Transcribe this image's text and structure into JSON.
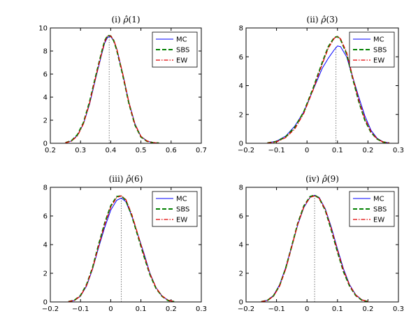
{
  "figure": {
    "legend_placement": "top-right",
    "grid": false
  },
  "series_styles": [
    {
      "name": "MC",
      "color": "#0000ff",
      "dash": "",
      "width": 1
    },
    {
      "name": "SBS",
      "color": "#008000",
      "dash": "6 3",
      "width": 2
    },
    {
      "name": "EW",
      "color": "#e00000",
      "dash": "6 2 1.5 2",
      "width": 1.3
    }
  ],
  "chart_data": [
    {
      "type": "line",
      "title_prefix": "(i) ",
      "title_symbol": "ρ̂",
      "title_suffix": "(1)",
      "xlim": [
        0.2,
        0.7
      ],
      "ylim": [
        0,
        10
      ],
      "xticks": [
        "0.2",
        "0.3",
        "0.4",
        "0.5",
        "0.6",
        "0.7"
      ],
      "yticks": [
        "0",
        "2",
        "4",
        "6",
        "8",
        "10"
      ],
      "vline_x": 0.395,
      "series": [
        {
          "name": "MC",
          "x": [
            0.25,
            0.27,
            0.29,
            0.31,
            0.33,
            0.35,
            0.37,
            0.38,
            0.39,
            0.4,
            0.41,
            0.42,
            0.44,
            0.46,
            0.48,
            0.5,
            0.52,
            0.54,
            0.56
          ],
          "y": [
            0.05,
            0.2,
            0.7,
            1.7,
            3.4,
            5.6,
            7.7,
            8.7,
            9.2,
            9.25,
            8.9,
            8.2,
            6.0,
            3.6,
            1.7,
            0.6,
            0.2,
            0.05,
            0.02
          ]
        },
        {
          "name": "SBS",
          "x": [
            0.25,
            0.27,
            0.29,
            0.31,
            0.33,
            0.35,
            0.37,
            0.38,
            0.39,
            0.4,
            0.41,
            0.42,
            0.44,
            0.46,
            0.48,
            0.5,
            0.52,
            0.54,
            0.56
          ],
          "y": [
            0.05,
            0.22,
            0.75,
            1.8,
            3.6,
            5.8,
            7.9,
            8.9,
            9.35,
            9.3,
            8.9,
            8.1,
            5.9,
            3.5,
            1.6,
            0.55,
            0.18,
            0.05,
            0.02
          ]
        },
        {
          "name": "EW",
          "x": [
            0.25,
            0.27,
            0.29,
            0.31,
            0.33,
            0.35,
            0.37,
            0.38,
            0.39,
            0.4,
            0.41,
            0.42,
            0.44,
            0.46,
            0.48,
            0.5,
            0.52,
            0.54,
            0.56
          ],
          "y": [
            0.04,
            0.18,
            0.65,
            1.7,
            3.5,
            5.7,
            7.8,
            8.8,
            9.3,
            9.3,
            8.95,
            8.2,
            6.0,
            3.55,
            1.65,
            0.6,
            0.2,
            0.05,
            0.02
          ]
        }
      ]
    },
    {
      "type": "line",
      "title_prefix": "(ii) ",
      "title_symbol": "ρ̂",
      "title_suffix": "(3)",
      "xlim": [
        -0.2,
        0.3
      ],
      "ylim": [
        0,
        8
      ],
      "xticks": [
        "−0.2",
        "−0.1",
        "0",
        "0.1",
        "0.2",
        "0.3"
      ],
      "yticks": [
        "0",
        "2",
        "4",
        "6",
        "8"
      ],
      "vline_x": 0.095,
      "series": [
        {
          "name": "MC",
          "x": [
            -0.13,
            -0.1,
            -0.07,
            -0.04,
            -0.01,
            0.02,
            0.05,
            0.07,
            0.09,
            0.1,
            0.11,
            0.13,
            0.15,
            0.17,
            0.19,
            0.21,
            0.23,
            0.25,
            0.27
          ],
          "y": [
            0.02,
            0.15,
            0.5,
            1.2,
            2.2,
            3.7,
            5.2,
            5.9,
            6.5,
            6.75,
            6.7,
            6.0,
            4.6,
            3.2,
            1.9,
            0.9,
            0.35,
            0.1,
            0.02
          ]
        },
        {
          "name": "SBS",
          "x": [
            -0.13,
            -0.1,
            -0.07,
            -0.04,
            -0.01,
            0.02,
            0.05,
            0.07,
            0.09,
            0.1,
            0.11,
            0.13,
            0.15,
            0.17,
            0.19,
            0.21,
            0.23,
            0.25,
            0.27
          ],
          "y": [
            0.02,
            0.12,
            0.45,
            1.1,
            2.2,
            3.8,
            5.6,
            6.7,
            7.35,
            7.4,
            7.2,
            6.2,
            4.5,
            2.9,
            1.6,
            0.75,
            0.3,
            0.08,
            0.02
          ]
        },
        {
          "name": "EW",
          "x": [
            -0.13,
            -0.1,
            -0.07,
            -0.04,
            -0.01,
            0.02,
            0.05,
            0.07,
            0.09,
            0.1,
            0.11,
            0.13,
            0.15,
            0.17,
            0.19,
            0.21,
            0.23,
            0.25,
            0.27
          ],
          "y": [
            0.01,
            0.1,
            0.4,
            1.0,
            2.1,
            3.7,
            5.5,
            6.6,
            7.3,
            7.4,
            7.25,
            6.3,
            4.6,
            3.0,
            1.7,
            0.8,
            0.3,
            0.08,
            0.02
          ]
        }
      ]
    },
    {
      "type": "line",
      "title_prefix": "(iii) ",
      "title_symbol": "ρ̂",
      "title_suffix": "(6)",
      "xlim": [
        -0.2,
        0.3
      ],
      "ylim": [
        0,
        8
      ],
      "xticks": [
        "−0.2",
        "−0.1",
        "0",
        "0.1",
        "0.2",
        "0.3"
      ],
      "yticks": [
        "0",
        "2",
        "4",
        "6",
        "8"
      ],
      "vline_x": 0.035,
      "series": [
        {
          "name": "MC",
          "x": [
            -0.14,
            -0.12,
            -0.1,
            -0.08,
            -0.06,
            -0.04,
            -0.02,
            0.0,
            0.02,
            0.035,
            0.05,
            0.07,
            0.09,
            0.11,
            0.13,
            0.15,
            0.17,
            0.19,
            0.21
          ],
          "y": [
            0.02,
            0.1,
            0.4,
            1.1,
            2.3,
            3.8,
            5.2,
            6.4,
            7.1,
            7.25,
            7.0,
            6.0,
            4.7,
            3.4,
            2.0,
            1.0,
            0.4,
            0.12,
            0.03
          ]
        },
        {
          "name": "SBS",
          "x": [
            -0.14,
            -0.12,
            -0.1,
            -0.08,
            -0.06,
            -0.04,
            -0.02,
            0.0,
            0.02,
            0.035,
            0.05,
            0.07,
            0.09,
            0.11,
            0.13,
            0.15,
            0.17,
            0.19,
            0.21
          ],
          "y": [
            0.02,
            0.12,
            0.45,
            1.2,
            2.4,
            4.0,
            5.5,
            6.7,
            7.35,
            7.4,
            7.1,
            6.0,
            4.6,
            3.2,
            1.9,
            0.95,
            0.4,
            0.1,
            0.02
          ]
        },
        {
          "name": "EW",
          "x": [
            -0.14,
            -0.12,
            -0.1,
            -0.08,
            -0.06,
            -0.04,
            -0.02,
            0.0,
            0.02,
            0.035,
            0.05,
            0.07,
            0.09,
            0.11,
            0.13,
            0.15,
            0.17,
            0.19,
            0.21
          ],
          "y": [
            0.02,
            0.11,
            0.42,
            1.15,
            2.35,
            3.9,
            5.4,
            6.6,
            7.3,
            7.4,
            7.15,
            6.1,
            4.7,
            3.3,
            1.95,
            1.0,
            0.42,
            0.12,
            0.03
          ]
        }
      ]
    },
    {
      "type": "line",
      "title_prefix": "(iv) ",
      "title_symbol": "ρ̂",
      "title_suffix": "(9)",
      "xlim": [
        -0.2,
        0.3
      ],
      "ylim": [
        0,
        8
      ],
      "xticks": [
        "−0.2",
        "−0.1",
        "0",
        "0.1",
        "0.2",
        "0.3"
      ],
      "yticks": [
        "0",
        "2",
        "4",
        "6",
        "8"
      ],
      "vline_x": 0.025,
      "series": [
        {
          "name": "MC",
          "x": [
            -0.15,
            -0.13,
            -0.11,
            -0.09,
            -0.07,
            -0.05,
            -0.03,
            -0.01,
            0.01,
            0.025,
            0.04,
            0.06,
            0.08,
            0.1,
            0.12,
            0.14,
            0.16,
            0.18,
            0.2
          ],
          "y": [
            0.02,
            0.12,
            0.45,
            1.2,
            2.4,
            3.9,
            5.4,
            6.6,
            7.3,
            7.45,
            7.3,
            6.5,
            5.2,
            3.7,
            2.3,
            1.2,
            0.5,
            0.15,
            0.03
          ]
        },
        {
          "name": "SBS",
          "x": [
            -0.15,
            -0.13,
            -0.11,
            -0.09,
            -0.07,
            -0.05,
            -0.03,
            -0.01,
            0.01,
            0.025,
            0.04,
            0.06,
            0.08,
            0.1,
            0.12,
            0.14,
            0.16,
            0.18,
            0.2
          ],
          "y": [
            0.02,
            0.1,
            0.42,
            1.15,
            2.35,
            3.9,
            5.5,
            6.7,
            7.35,
            7.45,
            7.25,
            6.4,
            5.0,
            3.5,
            2.1,
            1.1,
            0.45,
            0.12,
            0.02
          ]
        },
        {
          "name": "EW",
          "x": [
            -0.15,
            -0.13,
            -0.11,
            -0.09,
            -0.07,
            -0.05,
            -0.03,
            -0.01,
            0.01,
            0.025,
            0.04,
            0.06,
            0.08,
            0.1,
            0.12,
            0.14,
            0.16,
            0.18,
            0.2
          ],
          "y": [
            0.02,
            0.1,
            0.4,
            1.1,
            2.3,
            3.85,
            5.45,
            6.65,
            7.3,
            7.4,
            7.25,
            6.45,
            5.1,
            3.6,
            2.2,
            1.15,
            0.48,
            0.14,
            0.03
          ]
        }
      ]
    }
  ]
}
